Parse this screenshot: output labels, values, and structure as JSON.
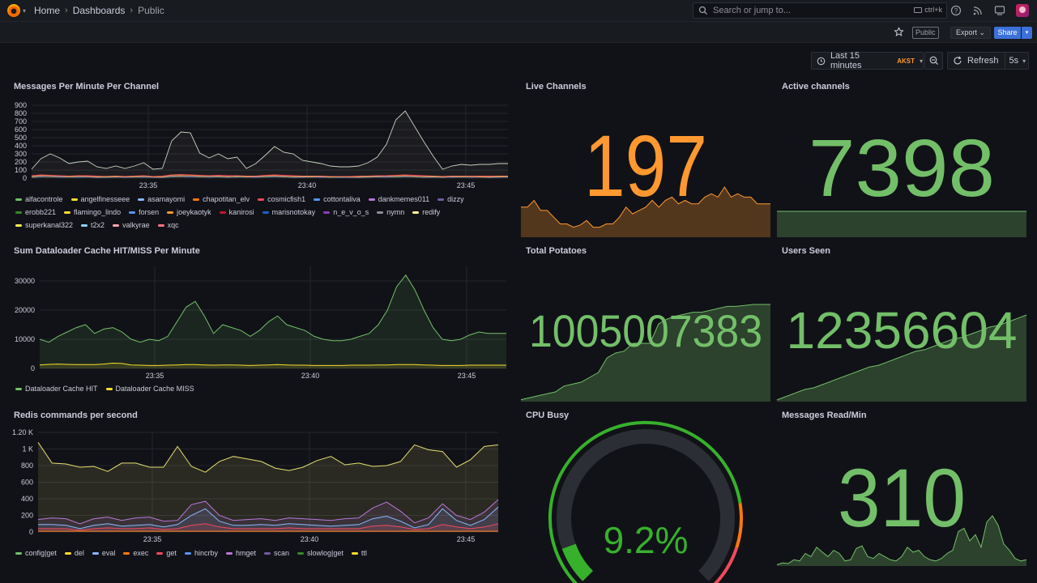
{
  "nav": {
    "breadcrumbs": [
      "Home",
      "Dashboards",
      "Public"
    ],
    "search_placeholder": "Search or jump to...",
    "search_shortcut": "ctrl+k",
    "public_badge": "Public",
    "export_label": "Export",
    "share_label": "Share",
    "time_range": "Last 15 minutes",
    "timezone": "AKST",
    "refresh_label": "Refresh",
    "refresh_interval": "5s"
  },
  "colors": {
    "green": "#73bf69",
    "orange": "#ff9830",
    "yellow": "#fade2a",
    "red": "#f2495c",
    "blue": "#5794f2",
    "accent_blue": "#3d71d9"
  },
  "panels": {
    "messages_per_minute": {
      "title": "Messages Per Minute Per Channel",
      "chart_data": {
        "type": "line",
        "yticks": [
          "0",
          "100",
          "200",
          "300",
          "400",
          "500",
          "600",
          "700",
          "800",
          "900"
        ],
        "ylim": [
          0,
          900
        ],
        "xticks": [
          "23:35",
          "23:40",
          "23:45"
        ],
        "legend": [
          "alfacontrole",
          "angelfinesseee",
          "asamayomi",
          "chapotitan_elv",
          "cosmicfish1",
          "cottontaliva",
          "dankmemes011",
          "dizzy",
          "erobb221",
          "flamingo_lindo",
          "forsen",
          "joeykaotyk",
          "kanirosi",
          "marisnotokay",
          "n_e_v_o_s",
          "nymn",
          "redify",
          "superkanal322",
          "t2x2",
          "valkyrae",
          "xqc"
        ],
        "legend_colors": [
          "#73bf69",
          "#fade2a",
          "#8ab8ff",
          "#ff780a",
          "#f2495c",
          "#5794f2",
          "#b877d9",
          "#705da0",
          "#37872d",
          "#fade2a",
          "#5794f2",
          "#ff9830",
          "#c4162a",
          "#1f60c4",
          "#8f3bb8",
          "#8e8e99",
          "#fff899",
          "#ffee52",
          "#8ad4ff",
          "#ffa6b0",
          "#ff7383"
        ],
        "series": [
          {
            "name": "xqc",
            "values": [
              110,
              240,
              300,
              250,
              180,
              200,
              210,
              140,
              120,
              150,
              120,
              150,
              190,
              110,
              120,
              460,
              570,
              560,
              310,
              250,
              300,
              240,
              260,
              120,
              180,
              280,
              390,
              320,
              300,
              220,
              200,
              180,
              150,
              140,
              140,
              150,
              190,
              260,
              420,
              720,
              830,
              640,
              450,
              270,
              110,
              150,
              170,
              160,
              170,
              170,
              180,
              180
            ]
          },
          {
            "name": "forsen",
            "values": [
              30,
              40,
              35,
              30,
              25,
              30,
              30,
              25,
              20,
              25,
              20,
              25,
              30,
              20,
              25,
              40,
              45,
              40,
              35,
              30,
              35,
              30,
              30,
              25,
              25,
              35,
              40,
              35,
              30,
              25,
              25,
              25,
              20,
              20,
              20,
              25,
              25,
              30,
              30,
              35,
              40,
              35,
              30,
              25,
              20,
              25,
              25,
              25,
              25,
              25,
              25,
              25
            ]
          }
        ]
      }
    },
    "dataloader": {
      "title": "Sum Dataloader Cache HIT/MISS Per Minute",
      "chart_data": {
        "type": "line",
        "yticks": [
          "0",
          "10000",
          "20000",
          "30000"
        ],
        "ylim": [
          0,
          35000
        ],
        "xticks": [
          "23:35",
          "23:40",
          "23:45"
        ],
        "series": [
          {
            "name": "Dataloader Cache HIT",
            "values": [
              10000,
              9000,
              11000,
              12500,
              14000,
              15000,
              12000,
              13500,
              14000,
              12500,
              10000,
              9000,
              10000,
              9500,
              11000,
              16000,
              21000,
              23000,
              18000,
              12000,
              15000,
              14000,
              13000,
              11000,
              13000,
              16000,
              18000,
              15000,
              14000,
              13000,
              11000,
              10000,
              9500,
              9500,
              10000,
              11000,
              12000,
              15000,
              20000,
              28000,
              32000,
              27000,
              20000,
              14000,
              10000,
              9500,
              10000,
              11500,
              12500,
              12000,
              12000,
              12000
            ]
          },
          {
            "name": "Dataloader Cache MISS",
            "values": [
              1200,
              1400,
              1500,
              1400,
              1300,
              1300,
              1300,
              1500,
              1800,
              1700,
              1200,
              1100,
              1000,
              1000,
              1100,
              1200,
              1300,
              1300,
              1200,
              1100,
              1200,
              1200,
              1100,
              1000,
              1100,
              1200,
              1300,
              1200,
              1100,
              1100,
              1000,
              1000,
              1000,
              1000,
              1100,
              1100,
              1100,
              1200,
              1200,
              1300,
              1300,
              1300,
              1200,
              1100,
              1000,
              1000,
              1000,
              1100,
              1100,
              1100,
              1100,
              1100
            ]
          }
        ]
      }
    },
    "redis": {
      "title": "Redis commands per second",
      "chart_data": {
        "type": "line",
        "yticks": [
          "0",
          "200",
          "400",
          "600",
          "800",
          "1 K",
          "1.20 K"
        ],
        "ylim": [
          0,
          1200
        ],
        "xticks": [
          "23:35",
          "23:40",
          "23:45"
        ],
        "legend": [
          "config|get",
          "del",
          "eval",
          "exec",
          "get",
          "hincrby",
          "hmget",
          "scan",
          "slowlog|get",
          "ttl"
        ],
        "legend_colors": [
          "#73bf69",
          "#fade2a",
          "#8ab8ff",
          "#ff780a",
          "#f2495c",
          "#5794f2",
          "#b877d9",
          "#705da0",
          "#37872d",
          "#fade2a"
        ],
        "series": [
          {
            "name": "ttl",
            "values": [
              1080,
              830,
              820,
              780,
              790,
              730,
              830,
              830,
              780,
              780,
              1030,
              790,
              720,
              850,
              910,
              880,
              850,
              770,
              740,
              780,
              860,
              910,
              810,
              830,
              790,
              800,
              850,
              1050,
              990,
              970,
              780,
              870,
              1030,
              1050
            ]
          },
          {
            "name": "hmget",
            "values": [
              150,
              170,
              160,
              100,
              160,
              180,
              140,
              170,
              180,
              130,
              140,
              330,
              370,
              200,
              140,
              150,
              160,
              140,
              170,
              160,
              150,
              140,
              160,
              170,
              290,
              360,
              250,
              110,
              170,
              340,
              200,
              150,
              240,
              390
            ]
          },
          {
            "name": "hincrby",
            "values": [
              90,
              90,
              80,
              40,
              80,
              100,
              70,
              80,
              90,
              60,
              90,
              200,
              280,
              130,
              80,
              80,
              90,
              80,
              100,
              90,
              80,
              70,
              80,
              90,
              160,
              190,
              130,
              50,
              90,
              280,
              140,
              80,
              150,
              300
            ]
          },
          {
            "name": "get",
            "values": [
              40,
              40,
              40,
              20,
              40,
              50,
              40,
              40,
              50,
              30,
              40,
              80,
              100,
              60,
              40,
              40,
              40,
              40,
              50,
              40,
              40,
              40,
              40,
              40,
              70,
              80,
              60,
              30,
              40,
              90,
              60,
              40,
              60,
              100
            ]
          }
        ]
      }
    },
    "live_channels": {
      "title": "Live Channels",
      "value": "197",
      "color": "#ff9830",
      "spark": [
        45,
        45,
        55,
        40,
        40,
        30,
        20,
        20,
        15,
        18,
        25,
        15,
        15,
        20,
        20,
        30,
        45,
        35,
        40,
        45,
        55,
        45,
        55,
        60,
        50,
        55,
        50,
        50,
        60,
        65,
        60,
        75,
        60,
        65,
        60,
        60,
        50,
        50,
        50
      ]
    },
    "active_channels": {
      "title": "Active channels",
      "value": "7398",
      "color": "#73bf69",
      "spark": [
        50,
        50,
        50,
        50,
        50,
        50,
        50,
        50,
        50,
        50
      ]
    },
    "total_potatoes": {
      "title": "Total Potatoes",
      "value": "1005007383",
      "color": "#73bf69",
      "spark": [
        2,
        4,
        6,
        8,
        10,
        16,
        18,
        20,
        25,
        30,
        45,
        50,
        52,
        60,
        60,
        60,
        80,
        85,
        88,
        90,
        92,
        92,
        94,
        96,
        98,
        98,
        99,
        100,
        100,
        100
      ]
    },
    "users_seen": {
      "title": "Users Seen",
      "value": "12356604",
      "color": "#73bf69",
      "spark": [
        2,
        6,
        10,
        14,
        16,
        20,
        24,
        28,
        32,
        36,
        40,
        42,
        46,
        50,
        54,
        58,
        60,
        64,
        68,
        72,
        74,
        78,
        82,
        86,
        88,
        92,
        96,
        100
      ]
    },
    "cpu_busy": {
      "title": "CPU Busy",
      "value": "9.2%",
      "fraction": 0.092,
      "color": "#37b12c"
    },
    "messages_read": {
      "title": "Messages Read/Min",
      "value": "310",
      "color": "#73bf69",
      "spark": [
        2,
        5,
        4,
        10,
        8,
        20,
        15,
        30,
        22,
        15,
        25,
        20,
        8,
        10,
        28,
        32,
        15,
        12,
        20,
        15,
        10,
        8,
        15,
        30,
        22,
        25,
        15,
        10,
        8,
        12,
        20,
        25,
        55,
        60,
        40,
        50,
        30,
        70,
        80,
        65,
        35,
        25,
        12,
        8,
        10
      ]
    }
  }
}
